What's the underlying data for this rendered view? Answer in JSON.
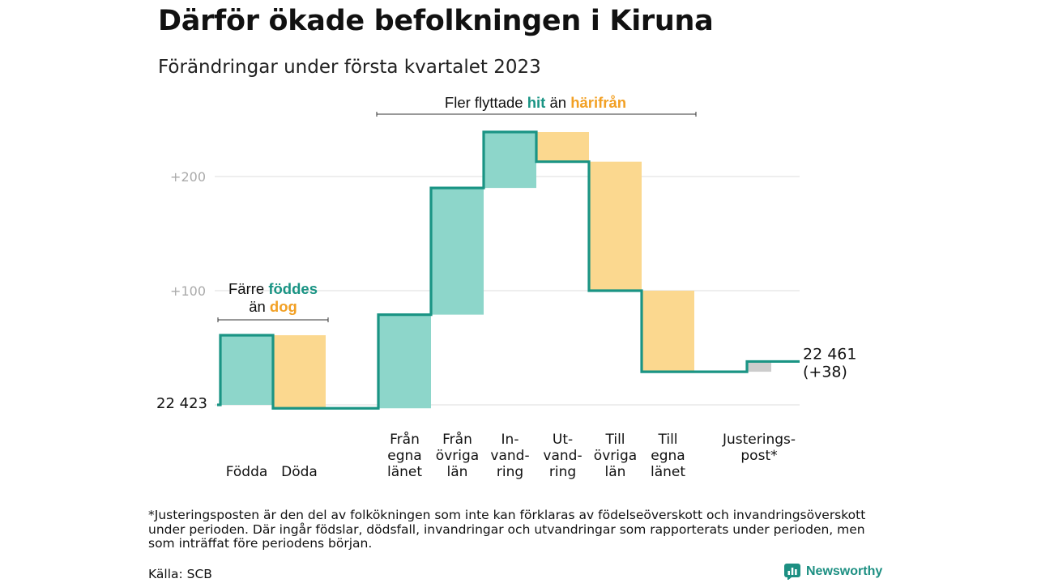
{
  "title": "Därför ökade befolkningen i Kiruna",
  "subtitle": "Förändringar under första kvartalet 2023",
  "footnote": "*Justeringsposten är den del av folkökningen som inte kan förklaras av födelseöverskott och invandringsöverskott under perioden. Där ingår födslar, dödsfall, invandringar och utvandringar som rapporterats under perioden, men som inträffat före periodens början.",
  "source": "Källa: SCB",
  "brand": "Newsworthy",
  "brand_icon": "newsworthy-logo-icon",
  "colors": {
    "increase_fill": "#8dd6ca",
    "decrease_fill": "#fbd88f",
    "adjust_fill": "#cccccc",
    "line": "#1a9484",
    "accent_hit": "#1a9484",
    "accent_harifran": "#f2a024",
    "grid": "#dddddd",
    "tick": "#aaaaaa"
  },
  "chart_data": {
    "type": "waterfall",
    "baseline": 22423,
    "start_label": "22 423",
    "end_label": [
      "22 461",
      "(+38)"
    ],
    "y_ticks": [
      {
        "value": 200,
        "label": "+200"
      },
      {
        "value": 100,
        "label": "+100"
      }
    ],
    "steps": [
      {
        "label": [
          "",
          "",
          "Födda"
        ],
        "change": 61,
        "kind": "increase"
      },
      {
        "label": [
          "",
          "",
          "Döda"
        ],
        "change": -64,
        "kind": "decrease"
      },
      {
        "label": [
          "Från",
          "egna",
          "länet"
        ],
        "change": 82,
        "kind": "increase"
      },
      {
        "label": [
          "Från",
          "övriga",
          "län"
        ],
        "change": 111,
        "kind": "increase"
      },
      {
        "label": [
          "In-",
          "vand-",
          "ring"
        ],
        "change": 49,
        "kind": "increase"
      },
      {
        "label": [
          "Ut-",
          "vand-",
          "ring"
        ],
        "change": -26,
        "kind": "decrease"
      },
      {
        "label": [
          "Till",
          "övriga",
          "län"
        ],
        "change": -113,
        "kind": "decrease"
      },
      {
        "label": [
          "Till",
          "egna",
          "länet"
        ],
        "change": -71,
        "kind": "decrease"
      },
      {
        "label": [
          "Justerings-",
          "post*",
          ""
        ],
        "change": 9,
        "kind": "adjustment"
      }
    ],
    "annotations": [
      {
        "text": [
          "Färre ",
          "föddes",
          " än ",
          "dog"
        ],
        "over_steps": [
          0,
          1
        ]
      },
      {
        "text": [
          "Fler flyttade ",
          "hit",
          " än ",
          "härifrån"
        ],
        "over_steps": [
          2,
          7
        ]
      }
    ]
  }
}
